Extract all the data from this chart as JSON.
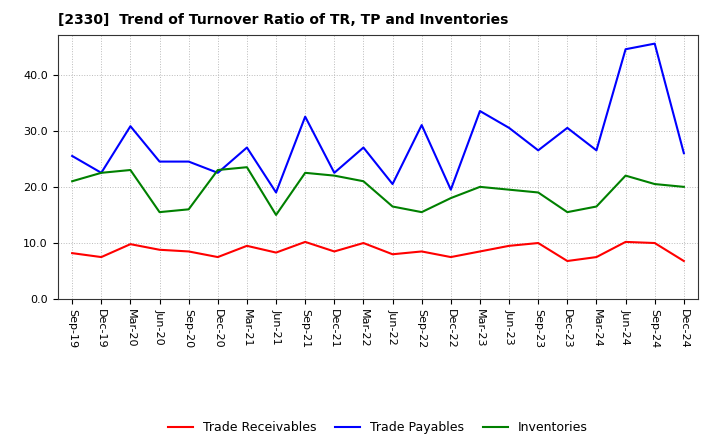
{
  "title": "[2330]  Trend of Turnover Ratio of TR, TP and Inventories",
  "x_labels": [
    "Sep-19",
    "Dec-19",
    "Mar-20",
    "Jun-20",
    "Sep-20",
    "Dec-20",
    "Mar-21",
    "Jun-21",
    "Sep-21",
    "Dec-21",
    "Mar-22",
    "Jun-22",
    "Sep-22",
    "Dec-22",
    "Mar-23",
    "Jun-23",
    "Sep-23",
    "Dec-23",
    "Mar-24",
    "Jun-24",
    "Sep-24",
    "Dec-24"
  ],
  "trade_receivables": [
    8.2,
    7.5,
    9.8,
    8.8,
    8.5,
    7.5,
    9.5,
    8.3,
    10.2,
    8.5,
    10.0,
    8.0,
    8.5,
    7.5,
    8.5,
    9.5,
    10.0,
    6.8,
    7.5,
    10.2,
    10.0,
    6.8
  ],
  "trade_payables": [
    25.5,
    22.5,
    30.8,
    24.5,
    24.5,
    22.5,
    27.0,
    19.0,
    32.5,
    22.5,
    27.0,
    20.5,
    31.0,
    19.5,
    33.5,
    30.5,
    26.5,
    30.5,
    26.5,
    44.5,
    45.5,
    26.0
  ],
  "inventories": [
    21.0,
    22.5,
    23.0,
    15.5,
    16.0,
    23.0,
    23.5,
    15.0,
    22.5,
    22.0,
    21.0,
    16.5,
    15.5,
    18.0,
    20.0,
    19.5,
    19.0,
    15.5,
    16.5,
    22.0,
    20.5,
    20.0
  ],
  "ylim": [
    0.0,
    47.0
  ],
  "yticks": [
    0.0,
    10.0,
    20.0,
    30.0,
    40.0
  ],
  "color_tr": "#ff0000",
  "color_tp": "#0000ff",
  "color_inv": "#008000",
  "background_color": "#ffffff",
  "grid_color": "#bbbbbb",
  "legend_tr": "Trade Receivables",
  "legend_tp": "Trade Payables",
  "legend_inv": "Inventories",
  "title_fontsize": 10,
  "tick_fontsize": 8,
  "legend_fontsize": 9,
  "linewidth": 1.5
}
